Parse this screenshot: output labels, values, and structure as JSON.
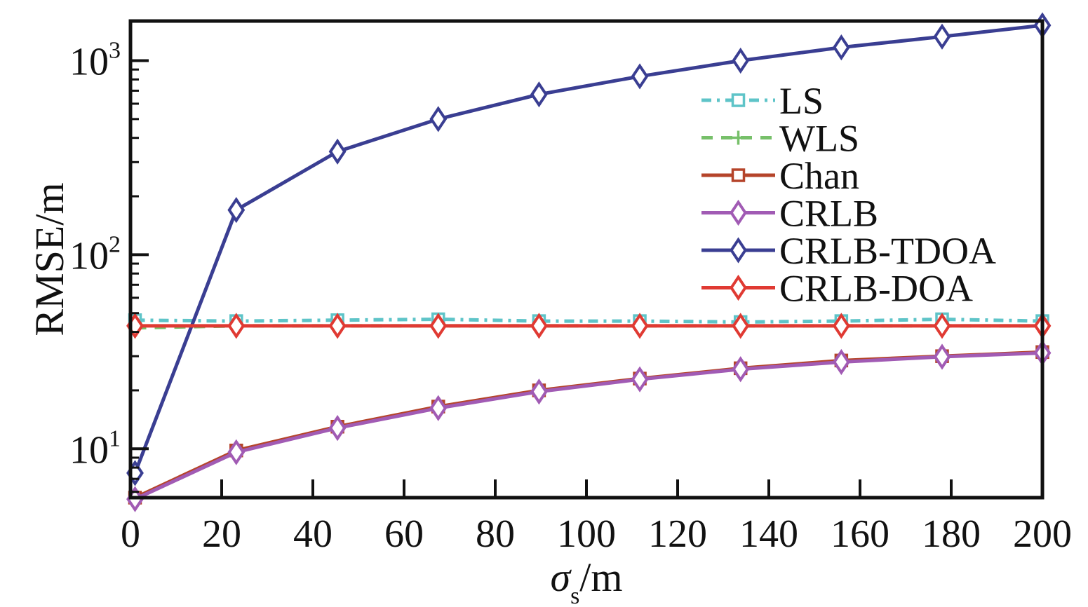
{
  "chart_data": {
    "type": "line",
    "yscale": "log",
    "title": "",
    "xlabel": {
      "symbol": "σ",
      "subscript": "s",
      "unit": "/m"
    },
    "ylabel": "RMSE/m",
    "xlim": [
      0,
      200
    ],
    "ylim": [
      5.6,
      1600
    ],
    "xticks": [
      {
        "value": 0,
        "label": "0"
      },
      {
        "value": 20,
        "label": "20"
      },
      {
        "value": 40,
        "label": "40"
      },
      {
        "value": 60,
        "label": "60"
      },
      {
        "value": 80,
        "label": "80"
      },
      {
        "value": 100,
        "label": "100"
      },
      {
        "value": 120,
        "label": "120"
      },
      {
        "value": 140,
        "label": "140"
      },
      {
        "value": 160,
        "label": "160"
      },
      {
        "value": 180,
        "label": "180"
      },
      {
        "value": 200,
        "label": "200"
      }
    ],
    "yticks": [
      {
        "value": 10,
        "base": "10",
        "exp": "1"
      },
      {
        "value": 100,
        "base": "10",
        "exp": "2"
      },
      {
        "value": 1000,
        "base": "10",
        "exp": "3"
      }
    ],
    "x": [
      1,
      23.2,
      45.4,
      67.5,
      89.6,
      111.7,
      133.8,
      155.9,
      178,
      200
    ],
    "legend_position": "top-right",
    "series": [
      {
        "name": "LS",
        "color": "#5ec4c8",
        "dash": "14,8,4,8",
        "marker": "square",
        "values": [
          46,
          45.5,
          46,
          46.5,
          45.5,
          45.5,
          45,
          45.5,
          46.5,
          45.5
        ]
      },
      {
        "name": "WLS",
        "color": "#77c06a",
        "dash": "16,12",
        "marker": "plus",
        "values": [
          42,
          43,
          43,
          43,
          43,
          43,
          43,
          43,
          43,
          43
        ]
      },
      {
        "name": "Chan",
        "color": "#b5442a",
        "dash": "",
        "marker": "square",
        "values": [
          5.6,
          9.8,
          13,
          16.5,
          20,
          23,
          26,
          28.5,
          30,
          31.5
        ]
      },
      {
        "name": "CRLB",
        "color": "#a15bb4",
        "dash": "",
        "marker": "diamond",
        "values": [
          5.5,
          9.6,
          12.8,
          16.2,
          19.7,
          22.8,
          25.7,
          28,
          29.8,
          31.2
        ]
      },
      {
        "name": "CRLB-TDOA",
        "color": "#3a3e92",
        "dash": "",
        "marker": "diamond",
        "values": [
          7.5,
          170,
          340,
          500,
          670,
          830,
          1000,
          1170,
          1330,
          1520
        ]
      },
      {
        "name": "CRLB-DOA",
        "color": "#e03a33",
        "dash": "",
        "marker": "diamond",
        "values": [
          43,
          43,
          43,
          43,
          43,
          43,
          43,
          43,
          43,
          43
        ]
      }
    ]
  }
}
